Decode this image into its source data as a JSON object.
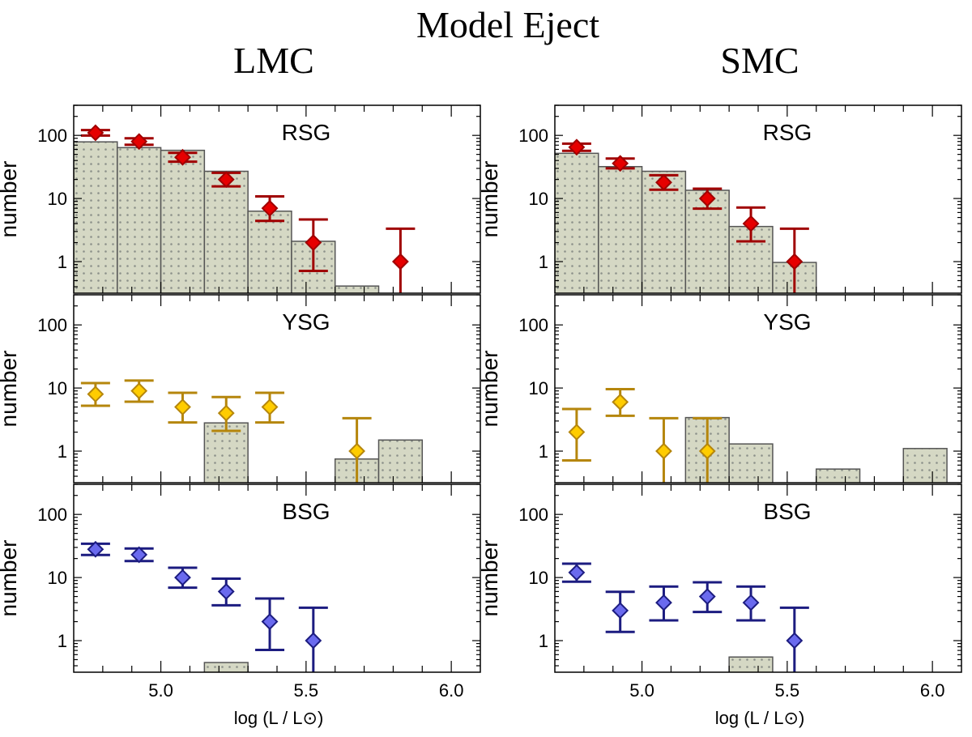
{
  "title": "Model Eject",
  "columns": [
    "LMC",
    "SMC"
  ],
  "chart_data": {
    "type": "bar",
    "subtype": "histogram with Poisson error-bar points",
    "xlabel": "log (L / L⊙)",
    "ylabel": "number",
    "xlim": [
      4.7,
      6.1
    ],
    "ylim": [
      0.316,
      300
    ],
    "yscale": "log",
    "xtick_labels": [
      "5.0",
      "5.5",
      "6.0"
    ],
    "xtick_values": [
      5.0,
      5.5,
      6.0
    ],
    "ytick_labels": [
      "1",
      "10",
      "100"
    ],
    "ytick_values": [
      1,
      10,
      100
    ],
    "bin_width": 0.15,
    "grid": false,
    "colors": {
      "bar_fill": "#d5d8c4",
      "bar_dots": "#8c918a",
      "bar_edge": "#555555",
      "RSG": {
        "fill": "#e60000",
        "edge": "#a00000"
      },
      "YSG": {
        "fill": "#ffcc00",
        "edge": "#b5860c"
      },
      "BSG": {
        "fill": "#6a6aee",
        "edge": "#1c1c80"
      }
    },
    "panels": [
      {
        "galaxy": "LMC",
        "class": "RSG",
        "bars": [
          {
            "x": 4.775,
            "y": 79
          },
          {
            "x": 4.925,
            "y": 64
          },
          {
            "x": 5.075,
            "y": 58
          },
          {
            "x": 5.225,
            "y": 27
          },
          {
            "x": 5.375,
            "y": 6.3
          },
          {
            "x": 5.525,
            "y": 2.1
          },
          {
            "x": 5.675,
            "y": 0.41
          }
        ],
        "points": [
          {
            "x": 4.775,
            "y": 110
          },
          {
            "x": 4.925,
            "y": 80
          },
          {
            "x": 5.075,
            "y": 45
          },
          {
            "x": 5.225,
            "y": 20
          },
          {
            "x": 5.375,
            "y": 7
          },
          {
            "x": 5.525,
            "y": 2
          },
          {
            "x": 5.825,
            "y": 1
          }
        ]
      },
      {
        "galaxy": "LMC",
        "class": "YSG",
        "bars": [
          {
            "x": 5.225,
            "y": 2.8
          },
          {
            "x": 5.675,
            "y": 0.75
          },
          {
            "x": 5.825,
            "y": 1.5
          }
        ],
        "points": [
          {
            "x": 4.775,
            "y": 8
          },
          {
            "x": 4.925,
            "y": 9
          },
          {
            "x": 5.075,
            "y": 5
          },
          {
            "x": 5.225,
            "y": 4
          },
          {
            "x": 5.375,
            "y": 5
          },
          {
            "x": 5.675,
            "y": 1
          }
        ]
      },
      {
        "galaxy": "LMC",
        "class": "BSG",
        "bars": [
          {
            "x": 5.225,
            "y": 0.45
          }
        ],
        "points": [
          {
            "x": 4.775,
            "y": 28
          },
          {
            "x": 4.925,
            "y": 23
          },
          {
            "x": 5.075,
            "y": 10
          },
          {
            "x": 5.225,
            "y": 6
          },
          {
            "x": 5.375,
            "y": 2
          },
          {
            "x": 5.525,
            "y": 1
          }
        ]
      },
      {
        "galaxy": "SMC",
        "class": "RSG",
        "bars": [
          {
            "x": 4.775,
            "y": 52
          },
          {
            "x": 4.925,
            "y": 32
          },
          {
            "x": 5.075,
            "y": 27
          },
          {
            "x": 5.225,
            "y": 13.5
          },
          {
            "x": 5.375,
            "y": 3.6
          },
          {
            "x": 5.525,
            "y": 0.97
          }
        ],
        "points": [
          {
            "x": 4.775,
            "y": 65
          },
          {
            "x": 4.925,
            "y": 36
          },
          {
            "x": 5.075,
            "y": 18
          },
          {
            "x": 5.225,
            "y": 10
          },
          {
            "x": 5.375,
            "y": 4
          },
          {
            "x": 5.525,
            "y": 1
          }
        ]
      },
      {
        "galaxy": "SMC",
        "class": "YSG",
        "bars": [
          {
            "x": 5.225,
            "y": 3.4
          },
          {
            "x": 5.375,
            "y": 1.3
          },
          {
            "x": 5.675,
            "y": 0.52
          },
          {
            "x": 5.975,
            "y": 1.1
          }
        ],
        "points": [
          {
            "x": 4.775,
            "y": 2
          },
          {
            "x": 4.925,
            "y": 6
          },
          {
            "x": 5.075,
            "y": 1
          },
          {
            "x": 5.225,
            "y": 1
          }
        ]
      },
      {
        "galaxy": "SMC",
        "class": "BSG",
        "bars": [
          {
            "x": 5.375,
            "y": 0.55
          }
        ],
        "points": [
          {
            "x": 4.775,
            "y": 12
          },
          {
            "x": 4.925,
            "y": 3
          },
          {
            "x": 5.075,
            "y": 4
          },
          {
            "x": 5.225,
            "y": 5
          },
          {
            "x": 5.375,
            "y": 4
          },
          {
            "x": 5.525,
            "y": 1
          }
        ]
      }
    ]
  }
}
